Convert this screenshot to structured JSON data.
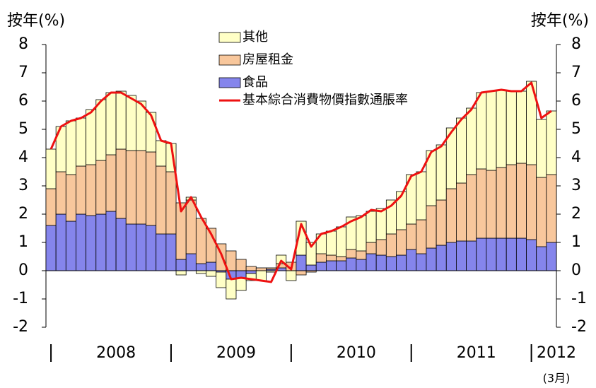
{
  "chart_data": {
    "type": "bar",
    "stacked": true,
    "y_label": "按年(%)",
    "y2_label": "按年(%)",
    "categories": [
      null,
      null,
      null,
      null,
      null,
      null,
      "2008",
      null,
      null,
      null,
      null,
      null,
      null,
      null,
      null,
      null,
      null,
      null,
      "2009",
      null,
      null,
      null,
      null,
      null,
      null,
      null,
      null,
      null,
      null,
      null,
      "2010",
      null,
      null,
      null,
      null,
      null,
      null,
      null,
      null,
      null,
      null,
      null,
      "2011",
      null,
      null,
      null,
      null,
      null,
      null,
      null,
      "2012"
    ],
    "annotation": "(3月)",
    "ylim": [
      -2,
      8
    ],
    "yticks": [
      -2,
      -1,
      0,
      1,
      2,
      3,
      4,
      5,
      6,
      7,
      8
    ],
    "y2lim": [
      -2,
      8
    ],
    "y2ticks": [
      -2,
      -1,
      0,
      1,
      2,
      3,
      4,
      5,
      6,
      7,
      8
    ],
    "series": [
      {
        "name": "食品",
        "color": "#8585ec",
        "values": [
          1.6,
          2.0,
          1.75,
          2.0,
          1.95,
          2.0,
          2.1,
          1.85,
          1.65,
          1.65,
          1.6,
          1.3,
          1.3,
          0.4,
          0.6,
          0.25,
          0.3,
          -0.05,
          -0.3,
          -0.25,
          -0.1,
          0.0,
          0.05,
          0.1,
          0.0,
          0.55,
          0.2,
          0.3,
          0.35,
          0.35,
          0.45,
          0.4,
          0.6,
          0.55,
          0.5,
          0.55,
          0.75,
          0.6,
          0.8,
          0.9,
          1.0,
          1.05,
          1.05,
          1.15,
          1.15,
          1.15,
          1.15,
          1.15,
          1.1,
          0.85,
          1.0
        ]
      },
      {
        "name": "房屋租金",
        "color": "#f8c79c",
        "values": [
          1.3,
          1.5,
          1.65,
          1.7,
          1.8,
          1.9,
          2.0,
          2.45,
          2.6,
          2.6,
          2.6,
          2.4,
          2.2,
          2.0,
          1.9,
          1.6,
          1.2,
          0.95,
          0.7,
          0.4,
          0.15,
          0.1,
          0.05,
          0.15,
          0.3,
          -0.15,
          -0.05,
          0.3,
          0.2,
          0.15,
          0.3,
          0.3,
          0.4,
          0.55,
          0.8,
          0.9,
          0.9,
          1.2,
          1.5,
          1.6,
          1.9,
          2.05,
          2.35,
          2.45,
          2.4,
          2.5,
          2.6,
          2.65,
          2.65,
          2.45,
          2.4
        ]
      },
      {
        "name": "其他",
        "color": "#ffffc6",
        "values": [
          1.4,
          1.6,
          1.9,
          1.7,
          1.95,
          2.15,
          2.2,
          2.05,
          1.95,
          1.75,
          1.4,
          0.9,
          1.0,
          -0.15,
          0.1,
          -0.1,
          -0.2,
          -0.55,
          -0.7,
          -0.45,
          -0.25,
          -0.35,
          -0.05,
          0.3,
          -0.35,
          1.2,
          0.8,
          0.7,
          0.85,
          1.05,
          1.15,
          1.25,
          1.1,
          1.1,
          1.2,
          1.35,
          1.75,
          1.7,
          1.95,
          1.95,
          2.15,
          2.3,
          2.35,
          2.7,
          2.8,
          2.75,
          2.6,
          2.55,
          2.95,
          2.05,
          2.25
        ]
      },
      {
        "name": "基本綜合消費物價指數通脹率",
        "color": "#ee1111",
        "type": "line",
        "values": [
          4.3,
          5.1,
          5.3,
          5.4,
          5.6,
          6.0,
          6.3,
          6.3,
          6.1,
          5.9,
          5.5,
          4.6,
          4.5,
          2.1,
          2.6,
          1.9,
          1.3,
          0.6,
          -0.3,
          -0.25,
          -0.3,
          -0.35,
          -0.4,
          0.35,
          0.05,
          1.65,
          0.85,
          1.3,
          1.4,
          1.55,
          1.75,
          1.9,
          2.15,
          2.1,
          2.3,
          2.65,
          3.35,
          3.5,
          4.2,
          4.4,
          4.9,
          5.35,
          5.7,
          6.3,
          6.35,
          6.4,
          6.35,
          6.35,
          6.65,
          5.4,
          5.65
        ]
      }
    ]
  }
}
